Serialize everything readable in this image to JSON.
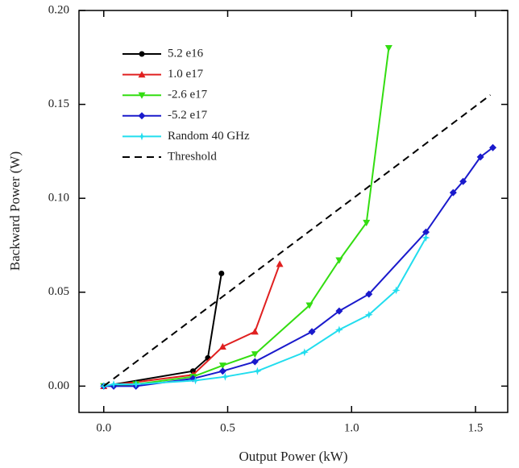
{
  "chart_data": {
    "type": "line",
    "x_label": "Output Power (kW)",
    "y_label": "Backward Power (W)",
    "xlim": [
      -0.1,
      1.63
    ],
    "ylim": [
      -0.014,
      0.2
    ],
    "xticks": [
      {
        "value": 0,
        "label": "0.0"
      },
      {
        "value": 0.5,
        "label": "0.5"
      },
      {
        "value": 1,
        "label": "1.0"
      },
      {
        "value": 1.5,
        "label": "1.5"
      }
    ],
    "yticks": [
      {
        "value": 0,
        "label": "0.00"
      },
      {
        "value": 0.05,
        "label": "0.05"
      },
      {
        "value": 0.1,
        "label": "0.10"
      },
      {
        "value": 0.15,
        "label": "0.15"
      },
      {
        "value": 0.2,
        "label": "0.20"
      }
    ],
    "grid": false,
    "legend": "upper left",
    "series": [
      {
        "name": "5.2 e16",
        "color": "#000000",
        "marker": "circle",
        "x": [
          0,
          0.36,
          0.42,
          0.475
        ],
        "values": [
          0,
          0.008,
          0.015,
          0.06
        ]
      },
      {
        "name": "1.0 e17",
        "color": "#e02020",
        "marker": "triangle-up",
        "x": [
          0,
          0.36,
          0.48,
          0.61,
          0.71
        ],
        "values": [
          0,
          0.006,
          0.021,
          0.029,
          0.065
        ]
      },
      {
        "name": "-2.6 e17",
        "color": "#33dd11",
        "marker": "triangle-down",
        "x": [
          0,
          0.13,
          0.36,
          0.48,
          0.61,
          0.83,
          0.95,
          1.06,
          1.15
        ],
        "values": [
          0,
          0.001,
          0.005,
          0.011,
          0.017,
          0.043,
          0.067,
          0.087,
          0.18
        ]
      },
      {
        "name": "-5.2 e17",
        "color": "#1a1acc",
        "marker": "diamond",
        "x": [
          0,
          0.04,
          0.13,
          0.36,
          0.48,
          0.61,
          0.84,
          0.95,
          1.07,
          1.3,
          1.41,
          1.45,
          1.52,
          1.57
        ],
        "values": [
          0,
          0,
          0,
          0.004,
          0.008,
          0.013,
          0.029,
          0.04,
          0.049,
          0.082,
          0.103,
          0.109,
          0.122,
          0.127
        ]
      },
      {
        "name": "Random 40 GHz",
        "color": "#22ddee",
        "marker": "star",
        "x": [
          0,
          0.04,
          0.13,
          0.37,
          0.49,
          0.62,
          0.81,
          0.95,
          1.07,
          1.18,
          1.3
        ],
        "values": [
          0,
          0.001,
          0.001,
          0.003,
          0.005,
          0.008,
          0.018,
          0.03,
          0.038,
          0.051,
          0.079
        ]
      },
      {
        "name": "Threshold",
        "color": "#000000",
        "marker": "none",
        "dash": true,
        "x": [
          0,
          1.56
        ],
        "values": [
          0,
          0.155
        ]
      }
    ]
  }
}
